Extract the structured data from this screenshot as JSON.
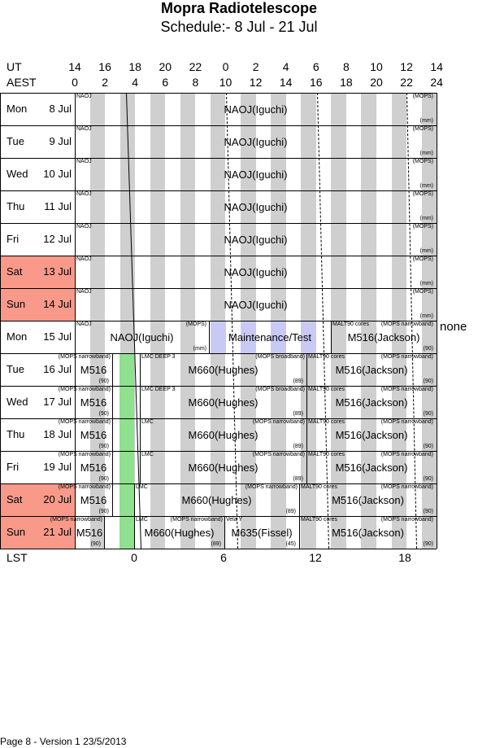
{
  "title": "Mopra Radiotelescope",
  "subtitle": "Schedule:- 8  Jul - 21 Jul",
  "ut_label": "UT",
  "aest_label": "AEST",
  "lst_label": "LST",
  "ut_ticks": [
    "14",
    "16",
    "18",
    "20",
    "22",
    "0",
    "2",
    "4",
    "6",
    "8",
    "10",
    "12",
    "14"
  ],
  "aest_ticks": [
    "0",
    "2",
    "4",
    "6",
    "8",
    "10",
    "12",
    "14",
    "16",
    "18",
    "20",
    "22",
    "24"
  ],
  "lst_ticks": [
    "0",
    "6",
    "12",
    "18"
  ],
  "days": [
    {
      "name": "Mon",
      "date": "8  Jul",
      "weekend": false
    },
    {
      "name": "Tue",
      "date": "9  Jul",
      "weekend": false
    },
    {
      "name": "Wed",
      "date": "10 Jul",
      "weekend": false
    },
    {
      "name": "Thu",
      "date": "11 Jul",
      "weekend": false
    },
    {
      "name": "Fri",
      "date": "12 Jul",
      "weekend": false
    },
    {
      "name": "Sat",
      "date": "13 Jul",
      "weekend": true
    },
    {
      "name": "Sun",
      "date": "14 Jul",
      "weekend": true
    },
    {
      "name": "Mon",
      "date": "15 Jul",
      "weekend": false
    },
    {
      "name": "Tue",
      "date": "16 Jul",
      "weekend": false
    },
    {
      "name": "Wed",
      "date": "17 Jul",
      "weekend": false
    },
    {
      "name": "Thu",
      "date": "18 Jul",
      "weekend": false
    },
    {
      "name": "Fri",
      "date": "19 Jul",
      "weekend": false
    },
    {
      "name": "Sat",
      "date": "20 Jul",
      "weekend": true
    },
    {
      "name": "Sun",
      "date": "21 Jul",
      "weekend": true
    }
  ],
  "rows": {
    "r0": {
      "tl": "NAOJ",
      "main": "NAOJ(Iguchi)",
      "tr": "(MOPS)",
      "br": "(mm)"
    },
    "r1": {
      "tl": "NAOJ",
      "main": "NAOJ(Iguchi)",
      "tr": "(MOPS)",
      "br": "(mm)"
    },
    "r2": {
      "tl": "NAOJ",
      "main": "NAOJ(Iguchi)",
      "tr": "(MOPS)",
      "br": "(mm)"
    },
    "r3": {
      "tl": "NAOJ",
      "main": "NAOJ(Iguchi)",
      "tr": "(MOPS)",
      "br": "(mm)"
    },
    "r4": {
      "tl": "NAOJ",
      "main": "NAOJ(Iguchi)",
      "tr": "(MOPS)",
      "br": "(mm)"
    },
    "r5": {
      "tl": "NAOJ",
      "main": "NAOJ(Iguchi)",
      "tr": "(MOPS)",
      "br": "(mm)"
    },
    "r6": {
      "tl": "NAOJ",
      "main": "NAOJ(Iguchi)",
      "tr": "(MOPS)",
      "br": "(mm)"
    },
    "r7": {
      "a_tl": "NAOJ",
      "a_main": "NAOJ(Iguchi)",
      "a_tr": "(MOPS)",
      "a_br": "(mm)",
      "b_main": "Maintenance/Test",
      "c_tl": "MALT90 cores",
      "c_tr": "(MOPS narrowband)",
      "c_main": "M516(Jackson)",
      "c_br": "(90)",
      "none": "none"
    },
    "r8": {
      "a_tr": "(MOPS narrowband)",
      "a_main": "M516",
      "a_br": "(90)",
      "b_tl": "LMC DEEP 3",
      "b_tr": "(MOPS broadband)",
      "b_main": "M660(Hughes)",
      "b_br": "(89)",
      "c_tl": "MALT90 cores",
      "c_tr": "(MOPS narrowband)",
      "c_main": "M516(Jackson)",
      "c_br": "(90)"
    },
    "r9": {
      "a_tr": "(MOPS narrowband)",
      "a_main": "M516",
      "a_br": "(90)",
      "b_tl": "LMC DEEP 3",
      "b_tr": "(MOPS broadband)",
      "b_main": "M660(Hughes)",
      "b_br": "(89)",
      "c_tl": "MALT90 cores",
      "c_tr": "(MOPS narrowband)",
      "c_main": "M516(Jackson)",
      "c_br": "(90)"
    },
    "r10": {
      "a_tr": "(MOPS narrowband)",
      "a_main": "M516",
      "a_br": "(90)",
      "b_tl": "LMC",
      "b_tr": "(MOPS narrowband)",
      "b_main": "M660(Hughes)",
      "b_br": "(89)",
      "c_tl": "MALT90 cores",
      "c_tr": "(MOPS narrowband)",
      "c_main": "M516(Jackson)",
      "c_br": "(90)"
    },
    "r11": {
      "a_tr": "(MOPS narrowband)",
      "a_main": "M516",
      "a_br": "(90)",
      "b_tl": "LMC",
      "b_tr": "(MOPS narrowband)",
      "b_main": "M660(Hughes)",
      "b_br": "(89)",
      "c_tl": "MALT90 cores",
      "c_tr": "(MOPS narrowband)",
      "c_main": "M516(Jackson)",
      "c_br": "(90)"
    },
    "r12": {
      "a_tr": "(MOPS narrowband)",
      "a_main": "M516",
      "a_br": "(90)",
      "b_tl": "LMC",
      "b_tr": "(MOPS narrowband)",
      "b_main": "M660(Hughes)",
      "b_br": "(89)",
      "c_tl": "MALT90 cores",
      "c_tr": "(MOPS narrowband)",
      "c_main": "M516(Jackson)",
      "c_br": "(90)"
    },
    "r13": {
      "a_tr": "(MOPS narrowband)",
      "a_main": "M516",
      "a_br": "(90)",
      "b_tl": "LMC",
      "b_tr": "(MOPS narrowband)",
      "b_main": "M660(Hughes)",
      "b_br": "(89)",
      "d_tl": "Vela Y",
      "d_main": "M635(Fissel)",
      "d_br": "(45)",
      "c_tl": "MALT90 cores",
      "c_tr": "(MOPS narrowband)",
      "c_main": "M516(Jackson)",
      "c_br": "(90)"
    }
  },
  "footer": "Page 8 - Version 1  23/5/2013"
}
